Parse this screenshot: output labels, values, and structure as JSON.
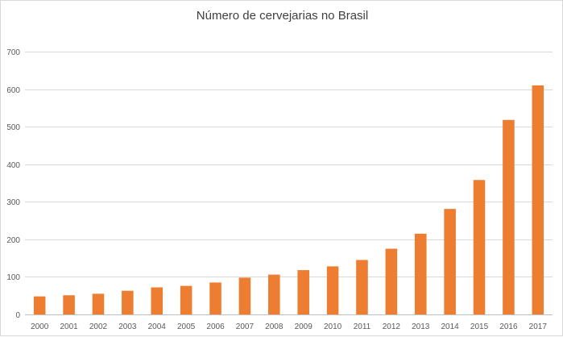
{
  "chart_data": {
    "type": "bar",
    "title": "Número de cervejarias no Brasil",
    "xlabel": "",
    "ylabel": "",
    "categories": [
      "2000",
      "2001",
      "2002",
      "2003",
      "2004",
      "2005",
      "2006",
      "2007",
      "2008",
      "2009",
      "2010",
      "2011",
      "2012",
      "2013",
      "2014",
      "2015",
      "2016",
      "2017"
    ],
    "values": [
      48,
      51,
      55,
      63,
      72,
      76,
      85,
      98,
      106,
      118,
      128,
      145,
      175,
      215,
      281,
      358,
      518,
      610
    ],
    "ylim": [
      0,
      700
    ],
    "yticks": [
      0,
      100,
      200,
      300,
      400,
      500,
      600,
      700
    ],
    "grid": true,
    "legend": "none",
    "bar_color": "#ed7d31"
  }
}
